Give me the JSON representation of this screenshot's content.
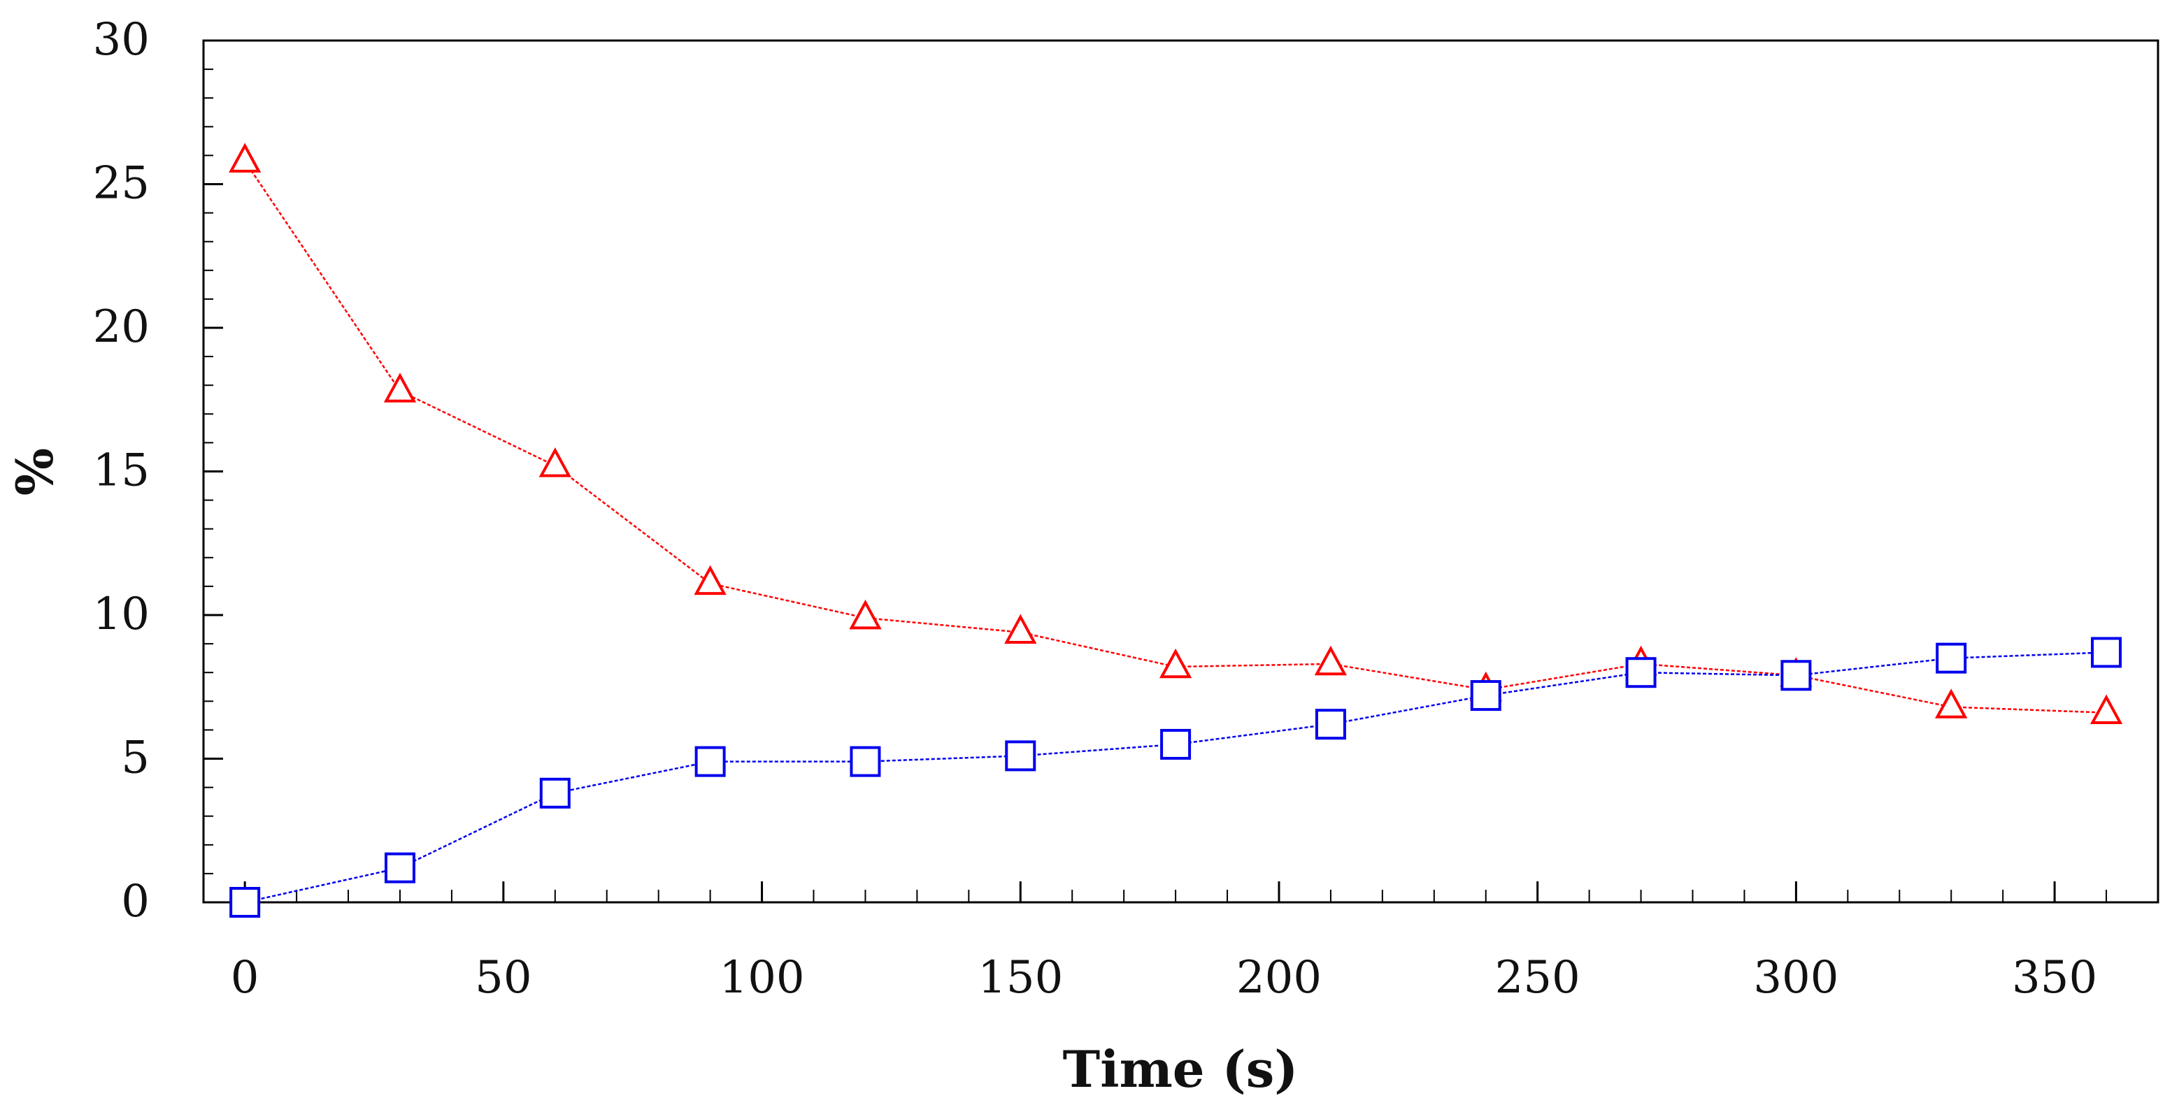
{
  "chart_data": {
    "type": "line",
    "title": "",
    "xlabel": "Time (s)",
    "ylabel": "%",
    "xlim": [
      -8,
      370
    ],
    "ylim": [
      0,
      30
    ],
    "xticks": [
      0,
      50,
      100,
      150,
      200,
      250,
      300,
      350
    ],
    "yticks": [
      0,
      5,
      10,
      15,
      20,
      25,
      30
    ],
    "xminor_step": 10,
    "yminor_step": 1,
    "grid": false,
    "x": [
      0,
      30,
      60,
      90,
      120,
      150,
      180,
      210,
      240,
      270,
      300,
      330,
      360
    ],
    "series": [
      {
        "name": "triangles",
        "marker": "triangle",
        "color": "#ff0000",
        "values": [
          25.8,
          17.8,
          15.2,
          11.1,
          9.9,
          9.4,
          8.2,
          8.3,
          7.4,
          8.3,
          7.9,
          6.8,
          6.6
        ]
      },
      {
        "name": "squares",
        "marker": "square",
        "color": "#0000ee",
        "values": [
          0.0,
          1.2,
          3.8,
          4.9,
          4.9,
          5.1,
          5.5,
          6.2,
          7.2,
          8.0,
          7.9,
          8.5,
          8.7
        ]
      }
    ]
  }
}
